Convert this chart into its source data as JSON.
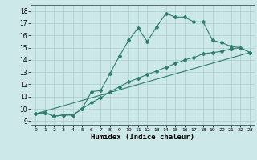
{
  "xlabel": "Humidex (Indice chaleur)",
  "ylabel": "",
  "bg_color": "#cce8e8",
  "grid_color": "#aacccc",
  "line_color": "#2e7d6e",
  "xlim": [
    -0.5,
    23.5
  ],
  "ylim": [
    8.7,
    18.5
  ],
  "yticks": [
    9,
    10,
    11,
    12,
    13,
    14,
    15,
    16,
    17,
    18
  ],
  "xticks": [
    0,
    1,
    2,
    3,
    4,
    5,
    6,
    7,
    8,
    9,
    10,
    11,
    12,
    13,
    14,
    15,
    16,
    17,
    18,
    19,
    20,
    21,
    22,
    23
  ],
  "line1_x": [
    0,
    1,
    2,
    3,
    4,
    5,
    6,
    7,
    8,
    9,
    10,
    11,
    12,
    13,
    14,
    15,
    16,
    17,
    18,
    19,
    20,
    21,
    22,
    23
  ],
  "line1_y": [
    9.6,
    9.7,
    9.4,
    9.5,
    9.5,
    10.0,
    11.4,
    11.5,
    12.9,
    14.3,
    15.6,
    16.6,
    15.5,
    16.7,
    17.8,
    17.5,
    17.5,
    17.1,
    17.1,
    15.6,
    15.4,
    15.1,
    15.0,
    14.6
  ],
  "line2_x": [
    0,
    23
  ],
  "line2_y": [
    9.6,
    14.6
  ],
  "line3_x": [
    0,
    1,
    2,
    3,
    4,
    5,
    6,
    7,
    8,
    9,
    10,
    11,
    12,
    13,
    14,
    15,
    16,
    17,
    18,
    19,
    20,
    21,
    22,
    23
  ],
  "line3_y": [
    9.6,
    9.7,
    9.4,
    9.5,
    9.5,
    10.0,
    10.5,
    10.9,
    11.4,
    11.8,
    12.2,
    12.5,
    12.8,
    13.1,
    13.4,
    13.7,
    14.0,
    14.2,
    14.5,
    14.6,
    14.7,
    14.9,
    15.0,
    14.6
  ]
}
